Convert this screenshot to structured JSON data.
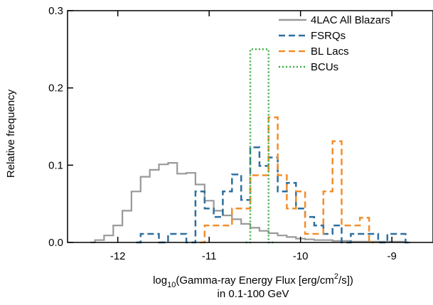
{
  "chart_data": {
    "type": "line",
    "drawstyle": "steps-mid",
    "xlim": [
      -12.55,
      -8.55
    ],
    "ylim": [
      0,
      0.3
    ],
    "xticks": [
      -12,
      -11,
      -10,
      -9
    ],
    "xtick_labels": [
      "-12",
      "-11",
      "-10",
      "-9"
    ],
    "yticks": [
      0,
      0.1,
      0.2,
      0.3
    ],
    "ytick_labels": [
      "0.0",
      "0.1",
      "0.2",
      "0.3"
    ],
    "ylabel": "Relative frequency",
    "xlabel_prefix": "log",
    "xlabel_base": "10",
    "xlabel_mid": "(Gamma-ray Energy Flux [erg/cm",
    "xlabel_power": "2",
    "xlabel_suffix": "/s])",
    "xlabel_line2": "in 0.1-100 GeV",
    "legend_position": "top-right",
    "series": [
      {
        "name": "4LAC All Blazars",
        "color": "#999999",
        "dash": "solid",
        "x": [
          -12.3,
          -12.2,
          -12.1,
          -12.0,
          -11.9,
          -11.8,
          -11.7,
          -11.6,
          -11.5,
          -11.4,
          -11.3,
          -11.2,
          -11.1,
          -11.0,
          -10.9,
          -10.8,
          -10.7,
          -10.6,
          -10.5,
          -10.4,
          -10.3,
          -10.2,
          -10.1,
          -10.0,
          -9.9,
          -9.8,
          -9.7,
          -9.6,
          -9.5,
          -9.4,
          -9.3,
          -9.2,
          -9.1,
          -9.0,
          -8.9,
          -8.8
        ],
        "y": [
          0,
          0.003,
          0.009,
          0.022,
          0.041,
          0.066,
          0.085,
          0.094,
          0.101,
          0.103,
          0.089,
          0.09,
          0.075,
          0.054,
          0.041,
          0.035,
          0.03,
          0.024,
          0.019,
          0.015,
          0.012,
          0.009,
          0.007,
          0.005,
          0.004,
          0.003,
          0.003,
          0.002,
          0.002,
          0.001,
          0.001,
          0.001,
          0.001,
          0.001,
          0.001,
          0
        ]
      },
      {
        "name": "FSRQs",
        "color": "#2e6f9e",
        "dash": "dashed",
        "x": [
          -11.8,
          -11.7,
          -11.6,
          -11.5,
          -11.4,
          -11.3,
          -11.2,
          -11.1,
          -11.0,
          -10.9,
          -10.8,
          -10.7,
          -10.6,
          -10.5,
          -10.4,
          -10.3,
          -10.2,
          -10.1,
          -10.0,
          -9.9,
          -9.8,
          -9.7,
          -9.6,
          -9.5,
          -9.4,
          -9.3,
          -9.2,
          -9.1,
          -9.0,
          -8.9,
          -8.8
        ],
        "y": [
          0,
          0.011,
          0.011,
          0,
          0.011,
          0.011,
          0,
          0.066,
          0.044,
          0.033,
          0.066,
          0.088,
          0.055,
          0.123,
          0.099,
          0.11,
          0.066,
          0.077,
          0.044,
          0.033,
          0.022,
          0.011,
          0.022,
          0,
          0.011,
          0.011,
          0.011,
          0,
          0.011,
          0.011,
          0
        ]
      },
      {
        "name": "BL Lacs",
        "color": "#f28e2b",
        "dash": "dashed",
        "x": [
          -11.1,
          -11.0,
          -10.9,
          -10.8,
          -10.7,
          -10.6,
          -10.5,
          -10.4,
          -10.3,
          -10.2,
          -10.1,
          -10.0,
          -9.9,
          -9.8,
          -9.7,
          -9.6,
          -9.5,
          -9.4,
          -9.3,
          -9.2
        ],
        "y": [
          0,
          0.022,
          0.022,
          0.022,
          0.044,
          0.044,
          0.087,
          0.087,
          0.162,
          0.087,
          0.044,
          0.066,
          0.011,
          0.011,
          0.066,
          0.131,
          0.022,
          0.022,
          0.032,
          0
        ]
      },
      {
        "name": "BCUs",
        "color": "#3cb043",
        "dash": "dotted",
        "x": [
          -10.6,
          -10.5,
          -10.4,
          -10.3
        ],
        "y": [
          0,
          0.25,
          0.25,
          0
        ]
      }
    ]
  }
}
